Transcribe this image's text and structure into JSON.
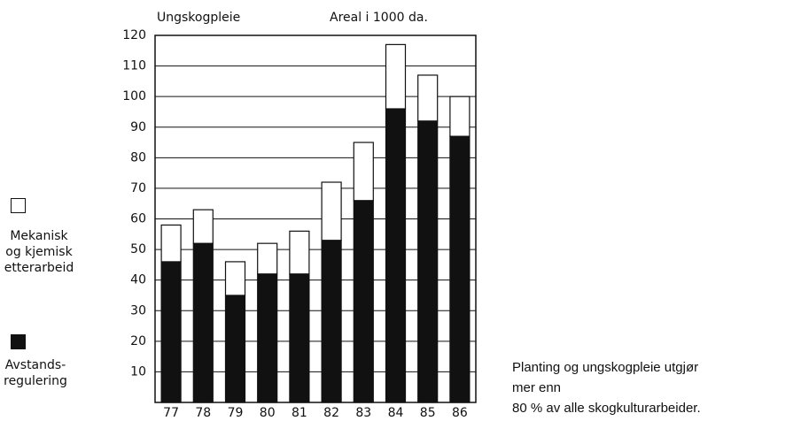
{
  "chart_data": {
    "type": "stacked_bar",
    "title": "Ungskogpleie",
    "subtitle": "Areal i 1000 da.",
    "categories": [
      "77",
      "78",
      "79",
      "80",
      "81",
      "82",
      "83",
      "84",
      "85",
      "86"
    ],
    "series": [
      {
        "name": "Avstands-regulering",
        "color": "#111111",
        "values": [
          46,
          52,
          35,
          42,
          42,
          53,
          66,
          96,
          92,
          87
        ]
      },
      {
        "name": "Mekanisk og kjemisk etterarbeid",
        "color": "#ffffff",
        "values": [
          12,
          11,
          11,
          10,
          14,
          19,
          19,
          21,
          15,
          13
        ]
      }
    ],
    "ylim": [
      0,
      120
    ],
    "yticks": [
      10,
      20,
      30,
      40,
      50,
      60,
      70,
      80,
      90,
      100,
      110,
      120
    ],
    "grid": true,
    "annotation": [
      "Planting og ungskogpleie utgjør",
      "mer enn",
      "80 % av alle skogkulturarbeider."
    ]
  }
}
